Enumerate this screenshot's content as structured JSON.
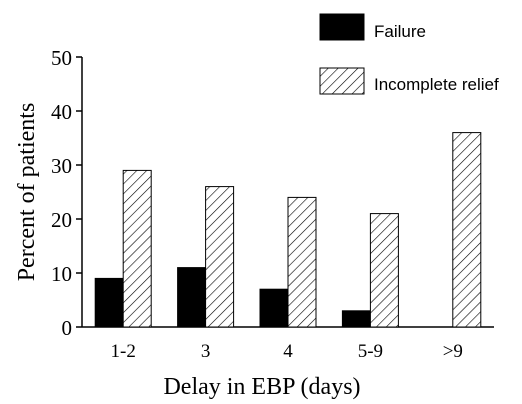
{
  "chart_data": {
    "type": "bar",
    "categories": [
      "1-2",
      "3",
      "4",
      "5-9",
      ">9"
    ],
    "series": [
      {
        "name": "Failure",
        "values": [
          9,
          11,
          7,
          3,
          0
        ],
        "fill": "solid",
        "color": "#000000"
      },
      {
        "name": "Incomplete relief",
        "values": [
          29,
          26,
          24,
          21,
          36
        ],
        "fill": "hatched",
        "color": "#000000"
      }
    ],
    "xlabel": "Delay in EBP (days)",
    "ylabel": "Percent of patients",
    "ylim": [
      0,
      50
    ],
    "yticks": [
      "0",
      "10",
      "20",
      "30",
      "40",
      "50"
    ],
    "grid": false,
    "legend_position": "top-right"
  }
}
